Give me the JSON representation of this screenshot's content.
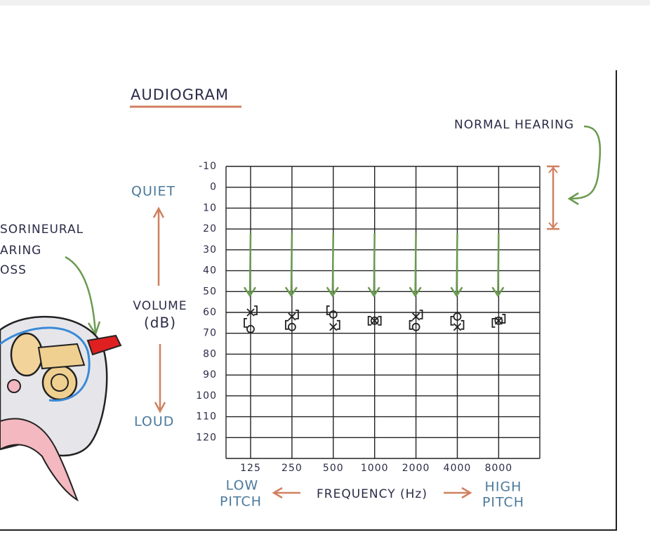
{
  "chart_data": {
    "type": "scatter",
    "title": "AUDIOGRAM",
    "side_label_lines": [
      "SORINEURAL",
      "ARING",
      "OSS"
    ],
    "annotation": "NORMAL HEARING",
    "y_top_label": "QUIET",
    "y_label_lines": [
      "VOLUME",
      "(dB)"
    ],
    "y_bottom_label": "LOUD",
    "x_label": "FREQUENCY (Hz)",
    "x_left_label_lines": [
      "LOW",
      "PITCH"
    ],
    "x_right_label_lines": [
      "HIGH",
      "PITCH"
    ],
    "categories": [
      "125",
      "250",
      "500",
      "1000",
      "2000",
      "4000",
      "8000"
    ],
    "ylim": [
      -10,
      130
    ],
    "y_inverted": true,
    "yticks": [
      -10,
      0,
      10,
      20,
      30,
      40,
      50,
      60,
      70,
      80,
      90,
      100,
      110,
      120
    ],
    "grid": true,
    "normal_range": [
      -10,
      20
    ],
    "arrow_range": [
      22,
      52
    ],
    "series": [
      {
        "marker": "o",
        "color": "#222222",
        "values": [
          68,
          67,
          61,
          64,
          67,
          62,
          64
        ]
      },
      {
        "marker": "x",
        "color": "#222222",
        "values": [
          60,
          62,
          67,
          64,
          62,
          67,
          64
        ]
      },
      {
        "marker": "[",
        "color": "#222222",
        "values": [
          65,
          66,
          59,
          64,
          66,
          64,
          65
        ]
      },
      {
        "marker": "]",
        "color": "#222222",
        "values": [
          59,
          61,
          66,
          64,
          61,
          66,
          63
        ]
      }
    ]
  }
}
